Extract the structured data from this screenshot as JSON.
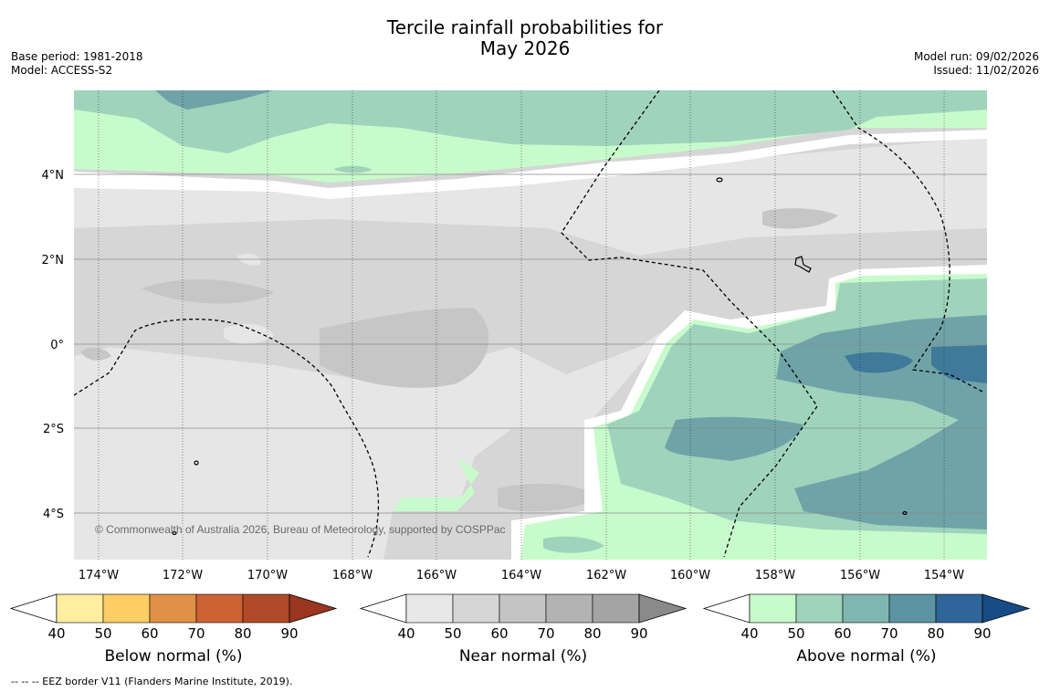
{
  "title_line1": "Tercile rainfall probabilities for",
  "title_line2": "May 2026",
  "meta_left": {
    "base_period": "Base period: 1981-2018",
    "model": "Model: ACCESS-S2"
  },
  "meta_right": {
    "model_run": "Model run: 09/02/2026",
    "issued": "Issued: 11/02/2026"
  },
  "copyright": "© Commonwealth of Australia 2026, Bureau of Meteorology, supported by COSPPac",
  "lon_ticks": [
    "174°W",
    "172°W",
    "170°W",
    "168°W",
    "166°W",
    "164°W",
    "162°W",
    "160°W",
    "158°W",
    "156°W",
    "154°W"
  ],
  "lat_ticks": [
    "4°N",
    "2°N",
    "0°",
    "2°S",
    "4°S"
  ],
  "colorbars": [
    {
      "label": "Below normal (%)",
      "ticks": [
        "40",
        "50",
        "60",
        "70",
        "80",
        "90"
      ],
      "colors": [
        "#ffeda0",
        "#fecd64",
        "#e09145",
        "#cd6233",
        "#b04a28",
        "#9a3520"
      ]
    },
    {
      "label": "Near normal (%)",
      "ticks": [
        "40",
        "50",
        "60",
        "70",
        "80",
        "90"
      ],
      "colors": [
        "#e8e8e8",
        "#d6d6d6",
        "#c4c4c4",
        "#b3b3b3",
        "#a4a4a4",
        "#8a8a8a"
      ]
    },
    {
      "label": "Above normal (%)",
      "ticks": [
        "40",
        "50",
        "60",
        "70",
        "80",
        "90"
      ],
      "colors": [
        "#c8fbcb",
        "#9fd3bc",
        "#80b6b0",
        "#5b93a2",
        "#2f6599",
        "#174b85"
      ]
    }
  ],
  "footer": "--  --  -- EEZ border V11 (Flanders Marine Institute, 2019)."
}
